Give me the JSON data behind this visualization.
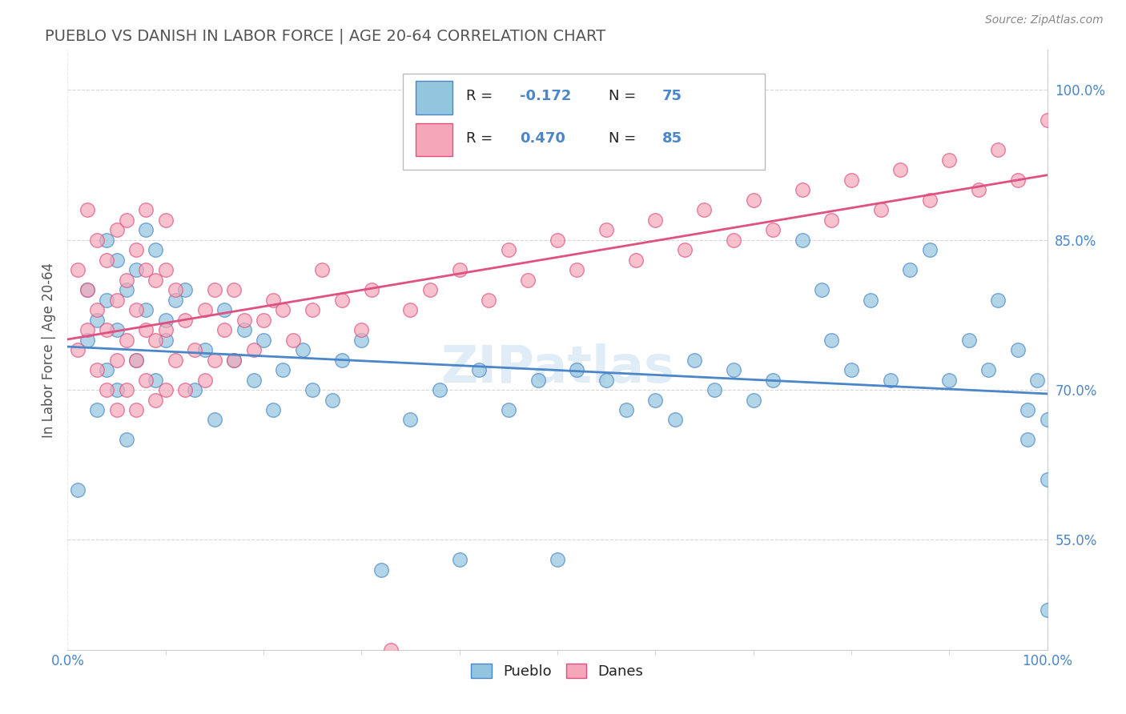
{
  "title": "PUEBLO VS DANISH IN LABOR FORCE | AGE 20-64 CORRELATION CHART",
  "source": "Source: ZipAtlas.com",
  "ylabel": "In Labor Force | Age 20-64",
  "ylabel_ticks": [
    "55.0%",
    "70.0%",
    "85.0%",
    "100.0%"
  ],
  "ylabel_values": [
    0.55,
    0.7,
    0.85,
    1.0
  ],
  "xlim": [
    0.0,
    1.0
  ],
  "ylim": [
    0.44,
    1.04
  ],
  "blue_color": "#92c5de",
  "pink_color": "#f4a7b9",
  "blue_line_color": "#4a86c8",
  "pink_line_color": "#e05080",
  "legend_blue_label": "Pueblo",
  "legend_pink_label": "Danes",
  "R_blue": -0.172,
  "N_blue": 75,
  "R_pink": 0.47,
  "N_pink": 85,
  "blue_scatter_x": [
    0.01,
    0.02,
    0.02,
    0.03,
    0.03,
    0.04,
    0.04,
    0.04,
    0.05,
    0.05,
    0.05,
    0.06,
    0.06,
    0.07,
    0.07,
    0.08,
    0.08,
    0.09,
    0.09,
    0.1,
    0.1,
    0.11,
    0.12,
    0.13,
    0.14,
    0.15,
    0.16,
    0.17,
    0.18,
    0.19,
    0.2,
    0.21,
    0.22,
    0.24,
    0.25,
    0.27,
    0.28,
    0.3,
    0.32,
    0.35,
    0.38,
    0.4,
    0.42,
    0.45,
    0.48,
    0.5,
    0.52,
    0.55,
    0.57,
    0.6,
    0.62,
    0.64,
    0.66,
    0.68,
    0.7,
    0.72,
    0.75,
    0.77,
    0.78,
    0.8,
    0.82,
    0.84,
    0.86,
    0.88,
    0.9,
    0.92,
    0.94,
    0.95,
    0.97,
    0.98,
    0.98,
    0.99,
    1.0,
    1.0,
    1.0
  ],
  "blue_scatter_y": [
    0.6,
    0.75,
    0.8,
    0.68,
    0.77,
    0.72,
    0.79,
    0.85,
    0.7,
    0.76,
    0.83,
    0.65,
    0.8,
    0.73,
    0.82,
    0.78,
    0.86,
    0.71,
    0.84,
    0.75,
    0.77,
    0.79,
    0.8,
    0.7,
    0.74,
    0.67,
    0.78,
    0.73,
    0.76,
    0.71,
    0.75,
    0.68,
    0.72,
    0.74,
    0.7,
    0.69,
    0.73,
    0.75,
    0.52,
    0.67,
    0.7,
    0.53,
    0.72,
    0.68,
    0.71,
    0.53,
    0.72,
    0.71,
    0.68,
    0.69,
    0.67,
    0.73,
    0.7,
    0.72,
    0.69,
    0.71,
    0.85,
    0.8,
    0.75,
    0.72,
    0.79,
    0.71,
    0.82,
    0.84,
    0.71,
    0.75,
    0.72,
    0.79,
    0.74,
    0.68,
    0.65,
    0.71,
    0.67,
    0.48,
    0.61
  ],
  "pink_scatter_x": [
    0.01,
    0.01,
    0.02,
    0.02,
    0.02,
    0.03,
    0.03,
    0.03,
    0.04,
    0.04,
    0.04,
    0.05,
    0.05,
    0.05,
    0.05,
    0.06,
    0.06,
    0.06,
    0.06,
    0.07,
    0.07,
    0.07,
    0.07,
    0.08,
    0.08,
    0.08,
    0.08,
    0.09,
    0.09,
    0.09,
    0.1,
    0.1,
    0.1,
    0.1,
    0.11,
    0.11,
    0.12,
    0.12,
    0.13,
    0.14,
    0.14,
    0.15,
    0.15,
    0.16,
    0.17,
    0.17,
    0.18,
    0.19,
    0.2,
    0.21,
    0.22,
    0.23,
    0.25,
    0.26,
    0.28,
    0.3,
    0.31,
    0.33,
    0.35,
    0.37,
    0.4,
    0.43,
    0.45,
    0.47,
    0.5,
    0.52,
    0.55,
    0.58,
    0.6,
    0.63,
    0.65,
    0.68,
    0.7,
    0.72,
    0.75,
    0.78,
    0.8,
    0.83,
    0.85,
    0.88,
    0.9,
    0.93,
    0.95,
    0.97,
    1.0
  ],
  "pink_scatter_y": [
    0.74,
    0.82,
    0.76,
    0.8,
    0.88,
    0.72,
    0.78,
    0.85,
    0.7,
    0.76,
    0.83,
    0.68,
    0.73,
    0.79,
    0.86,
    0.7,
    0.75,
    0.81,
    0.87,
    0.68,
    0.73,
    0.78,
    0.84,
    0.71,
    0.76,
    0.82,
    0.88,
    0.69,
    0.75,
    0.81,
    0.7,
    0.76,
    0.82,
    0.87,
    0.73,
    0.8,
    0.7,
    0.77,
    0.74,
    0.71,
    0.78,
    0.73,
    0.8,
    0.76,
    0.73,
    0.8,
    0.77,
    0.74,
    0.77,
    0.79,
    0.78,
    0.75,
    0.78,
    0.82,
    0.79,
    0.76,
    0.8,
    0.44,
    0.78,
    0.8,
    0.82,
    0.79,
    0.84,
    0.81,
    0.85,
    0.82,
    0.86,
    0.83,
    0.87,
    0.84,
    0.88,
    0.85,
    0.89,
    0.86,
    0.9,
    0.87,
    0.91,
    0.88,
    0.92,
    0.89,
    0.93,
    0.9,
    0.94,
    0.91,
    0.97
  ],
  "watermark": "ZIPatlas",
  "background_color": "#ffffff",
  "grid_color": "#cccccc",
  "title_color": "#555555",
  "tick_label_color": "#4a86c8",
  "axis_label_color": "#555555"
}
